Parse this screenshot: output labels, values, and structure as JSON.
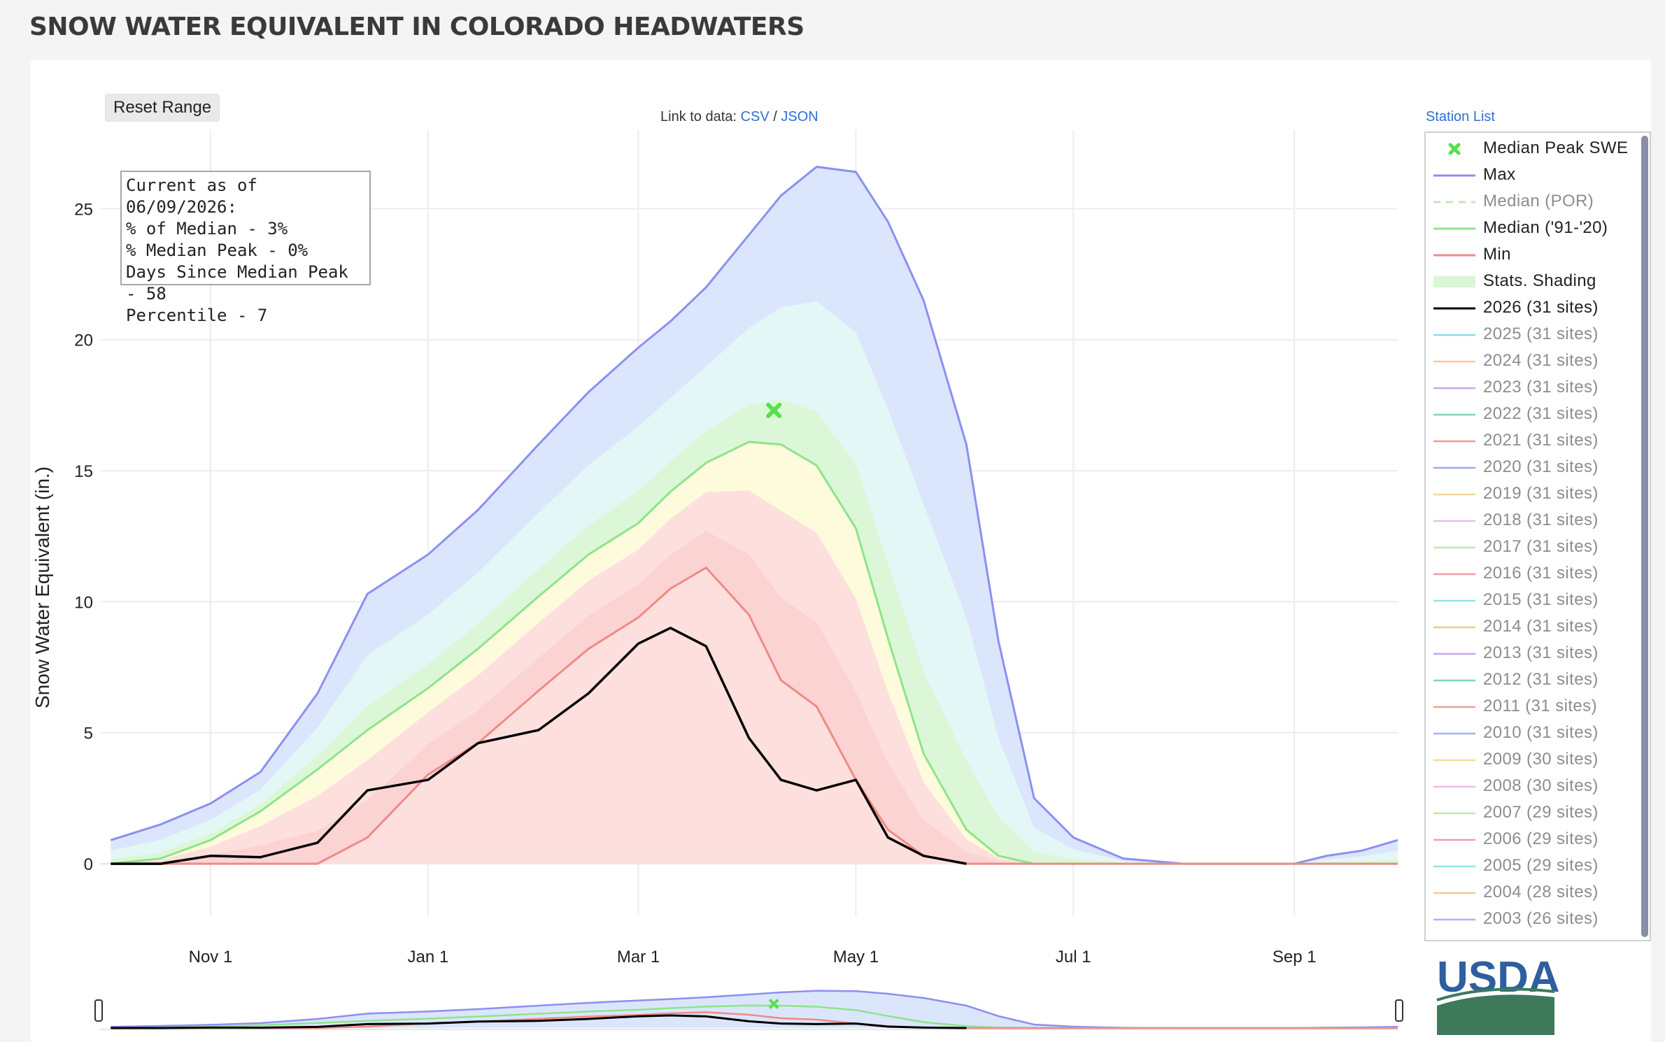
{
  "page": {
    "title": "SNOW WATER EQUIVALENT IN COLORADO HEADWATERS",
    "reset_button": "Reset Range",
    "link_prefix": "Link to data:",
    "link_csv": "CSV",
    "link_sep": "/",
    "link_json": "JSON",
    "station_list": "Station List",
    "logo_text": "USDA"
  },
  "info_box": [
    "Current as of 06/09/2026:",
    "% of Median - 3%",
    "% Median Peak - 0%",
    "Days Since Median Peak - 58",
    "Percentile - 7"
  ],
  "legend": [
    {
      "label": "Median Peak SWE",
      "kind": "marker",
      "color": "#55e04c",
      "active": true
    },
    {
      "label": "Max",
      "kind": "line",
      "color": "#8c8ff0",
      "active": true
    },
    {
      "label": "Median (POR)",
      "kind": "dash",
      "color": "#bfe8b8",
      "active": false
    },
    {
      "label": "Median ('91-'20)",
      "kind": "line",
      "color": "#8ee48a",
      "active": true
    },
    {
      "label": "Min",
      "kind": "line",
      "color": "#f08a84",
      "active": true
    },
    {
      "label": "Stats. Shading",
      "kind": "fill",
      "color": "#d9f6d5",
      "active": true
    },
    {
      "label": "2026 (31 sites)",
      "kind": "line",
      "color": "#000000",
      "active": true
    },
    {
      "label": "2025 (31 sites)",
      "kind": "line",
      "color": "#8fd8ee",
      "active": false
    },
    {
      "label": "2024 (31 sites)",
      "kind": "line",
      "color": "#f6c99a",
      "active": false
    },
    {
      "label": "2023 (31 sites)",
      "kind": "line",
      "color": "#c9a6f2",
      "active": false
    },
    {
      "label": "2022 (31 sites)",
      "kind": "line",
      "color": "#7fd6b6",
      "active": false
    },
    {
      "label": "2021 (31 sites)",
      "kind": "line",
      "color": "#f29a8e",
      "active": false
    },
    {
      "label": "2020 (31 sites)",
      "kind": "line",
      "color": "#9ea6f2",
      "active": false
    },
    {
      "label": "2019 (31 sites)",
      "kind": "line",
      "color": "#f8d79a",
      "active": false
    },
    {
      "label": "2018 (31 sites)",
      "kind": "line",
      "color": "#f3b6f0",
      "active": false
    },
    {
      "label": "2017 (31 sites)",
      "kind": "line",
      "color": "#c8e6a2",
      "active": false
    },
    {
      "label": "2016 (31 sites)",
      "kind": "line",
      "color": "#f59aa8",
      "active": false
    },
    {
      "label": "2015 (31 sites)",
      "kind": "line",
      "color": "#92e2ea",
      "active": false
    },
    {
      "label": "2014 (31 sites)",
      "kind": "line",
      "color": "#f6c38e",
      "active": false
    },
    {
      "label": "2013 (31 sites)",
      "kind": "line",
      "color": "#c4a6f0",
      "active": false
    },
    {
      "label": "2012 (31 sites)",
      "kind": "line",
      "color": "#86d6b4",
      "active": false
    },
    {
      "label": "2011 (31 sites)",
      "kind": "line",
      "color": "#f0a090",
      "active": false
    },
    {
      "label": "2010 (31 sites)",
      "kind": "line",
      "color": "#a6aef2",
      "active": false
    },
    {
      "label": "2009 (30 sites)",
      "kind": "line",
      "color": "#f8d89a",
      "active": false
    },
    {
      "label": "2008 (30 sites)",
      "kind": "line",
      "color": "#f2b8f0",
      "active": false
    },
    {
      "label": "2007 (29 sites)",
      "kind": "line",
      "color": "#c8e6a6",
      "active": false
    },
    {
      "label": "2006 (29 sites)",
      "kind": "line",
      "color": "#f59cae",
      "active": false
    },
    {
      "label": "2005 (29 sites)",
      "kind": "line",
      "color": "#92e2ea",
      "active": false
    },
    {
      "label": "2004 (28 sites)",
      "kind": "line",
      "color": "#f6c792",
      "active": false
    },
    {
      "label": "2003 (26 sites)",
      "kind": "line",
      "color": "#c6a8f2",
      "active": false
    }
  ],
  "chart_data": {
    "type": "area",
    "xlabel": "",
    "ylabel": "Snow Water Equivalent (in.)",
    "ylim": [
      -2,
      28
    ],
    "x_ticks": [
      "Nov 1",
      "Jan 1",
      "Mar 1",
      "May 1",
      "Jul 1",
      "Sep 1"
    ],
    "y_ticks": [
      0,
      5,
      10,
      15,
      20,
      25
    ],
    "grid": true,
    "legend_position": "right",
    "x": [
      "10-04",
      "10-18",
      "11-01",
      "11-15",
      "12-01",
      "12-15",
      "01-01",
      "01-15",
      "02-01",
      "02-15",
      "03-01",
      "03-10",
      "03-20",
      "04-01",
      "04-10",
      "04-20",
      "05-01",
      "05-10",
      "05-20",
      "06-01",
      "06-10",
      "06-20",
      "07-01",
      "07-15",
      "08-01",
      "08-15",
      "09-01",
      "09-10",
      "09-20",
      "09-30"
    ],
    "series": [
      {
        "name": "Max",
        "color": "#8c8ff0",
        "values": [
          0.9,
          1.5,
          2.3,
          3.5,
          6.5,
          10.3,
          11.8,
          13.5,
          16.0,
          18.0,
          19.7,
          20.7,
          22.0,
          24.0,
          25.5,
          26.6,
          26.4,
          24.5,
          21.5,
          16.0,
          8.5,
          2.5,
          1.0,
          0.2,
          0,
          0,
          0,
          0.3,
          0.5,
          0.9
        ]
      },
      {
        "name": "Median ('91-'20)",
        "color": "#8ee48a",
        "values": [
          0,
          0.2,
          0.9,
          2.0,
          3.6,
          5.1,
          6.7,
          8.2,
          10.2,
          11.8,
          13.0,
          14.2,
          15.3,
          16.1,
          16.0,
          15.2,
          12.8,
          8.6,
          4.2,
          1.3,
          0.3,
          0,
          0,
          0,
          0,
          0,
          0,
          0,
          0,
          0
        ]
      },
      {
        "name": "Min",
        "color": "#f08a84",
        "values": [
          0,
          0,
          0,
          0,
          0,
          1.0,
          3.4,
          4.6,
          6.6,
          8.2,
          9.4,
          10.5,
          11.3,
          9.5,
          7.0,
          6.0,
          3.2,
          1.3,
          0.3,
          0,
          0,
          0,
          0,
          0,
          0,
          0,
          0,
          0,
          0,
          0
        ]
      },
      {
        "name": "2026 (31 sites)",
        "color": "#000000",
        "values": [
          0,
          0,
          0.3,
          0.25,
          0.8,
          2.8,
          3.2,
          4.6,
          5.1,
          6.5,
          8.4,
          9.0,
          8.3,
          4.8,
          3.2,
          2.8,
          3.2,
          1.0,
          0.3,
          0,
          null,
          null,
          null,
          null,
          null,
          null,
          null,
          null,
          null,
          null
        ]
      }
    ],
    "median_peak_swe": {
      "x": "04-08",
      "y": 17.3
    }
  }
}
